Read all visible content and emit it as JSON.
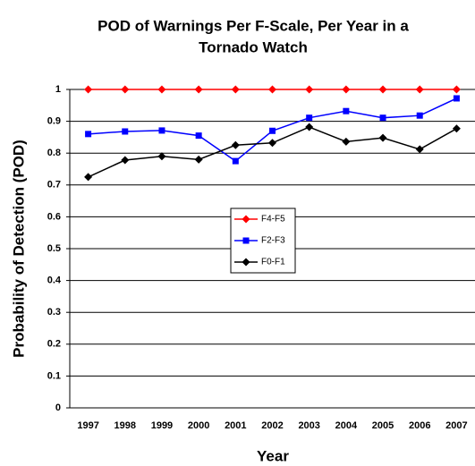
{
  "chart_data": {
    "type": "line",
    "title": [
      "POD of Warnings Per F-Scale, Per Year in a",
      "Tornado Watch"
    ],
    "x_label": "Year",
    "y_label": "Probability of Detection (POD)",
    "categories": [
      "1997",
      "1998",
      "1999",
      "2000",
      "2001",
      "2002",
      "2003",
      "2004",
      "2005",
      "2006",
      "2007"
    ],
    "series": [
      {
        "name": "F4-F5",
        "color": "#ff0000",
        "marker": "diamond",
        "values": [
          1,
          1,
          1,
          1,
          1,
          1,
          1,
          1,
          1,
          1,
          1
        ]
      },
      {
        "name": "F2-F3",
        "color": "#0000ff",
        "marker": "square",
        "values": [
          0.86,
          0.868,
          0.871,
          0.855,
          0.775,
          0.87,
          0.911,
          0.932,
          0.911,
          0.918,
          0.972
        ]
      },
      {
        "name": "F0-F1",
        "color": "#000000",
        "marker": "diamond",
        "values": [
          0.725,
          0.778,
          0.79,
          0.78,
          0.825,
          0.832,
          0.882,
          0.836,
          0.848,
          0.812,
          0.877
        ]
      }
    ],
    "ylim": [
      0,
      1
    ],
    "yticks": [
      0,
      0.1,
      0.2,
      0.3,
      0.4,
      0.5,
      0.6,
      0.7,
      0.8,
      0.9,
      1
    ],
    "grid": true
  }
}
